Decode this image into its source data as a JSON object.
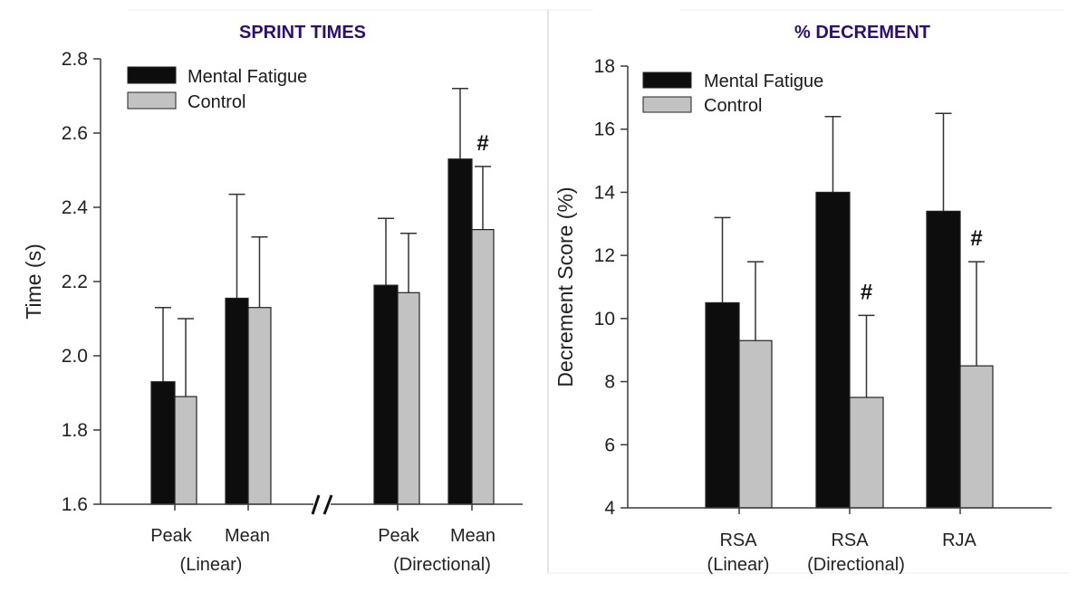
{
  "colors": {
    "title": "#2e0f6e",
    "mental_fatigue": "#0d0d0d",
    "control": "#c2c2c2",
    "axis": "#3a3a3a"
  },
  "chart_data": [
    {
      "type": "bar",
      "title": "SPRINT TIMES",
      "xlabel": "",
      "ylabel": "Time (s)",
      "ylim": [
        1.6,
        2.8
      ],
      "yticks": [
        "1.6",
        "1.8",
        "2.0",
        "2.2",
        "2.4",
        "2.6",
        "2.8"
      ],
      "ytick_values": [
        1.6,
        1.8,
        2.0,
        2.2,
        2.4,
        2.6,
        2.8
      ],
      "legend": {
        "placement": "top-left",
        "entries": [
          "Mental Fatigue",
          "Control"
        ]
      },
      "axis_break": "//",
      "categories": [
        "Peak",
        "Mean",
        "Peak",
        "Mean"
      ],
      "group_labels": [
        "(Linear)",
        "(Directional)"
      ],
      "series": [
        {
          "name": "Mental Fatigue",
          "values": [
            1.93,
            2.155,
            2.19,
            2.53
          ],
          "error_upper": [
            2.13,
            2.435,
            2.37,
            2.72
          ]
        },
        {
          "name": "Control",
          "values": [
            1.89,
            2.13,
            2.17,
            2.34
          ],
          "error_upper": [
            2.1,
            2.32,
            2.33,
            2.51
          ]
        }
      ],
      "annotations": [
        {
          "text": "#",
          "category_index": 3,
          "note": "above Control error bar"
        }
      ]
    },
    {
      "type": "bar",
      "title": "% DECREMENT",
      "xlabel": "",
      "ylabel": "Decrement Score (%)",
      "ylim": [
        4,
        18
      ],
      "yticks": [
        "4",
        "6",
        "8",
        "10",
        "12",
        "14",
        "16",
        "18"
      ],
      "ytick_values": [
        4,
        6,
        8,
        10,
        12,
        14,
        16,
        18
      ],
      "legend": {
        "placement": "top-left",
        "entries": [
          "Mental Fatigue",
          "Control"
        ]
      },
      "categories": [
        "RSA",
        "RSA",
        "RJA"
      ],
      "category_sublabels": [
        "(Linear)",
        "(Directional)",
        ""
      ],
      "series": [
        {
          "name": "Mental Fatigue",
          "values": [
            10.5,
            14.0,
            13.4
          ],
          "error_upper": [
            13.2,
            16.4,
            16.5
          ]
        },
        {
          "name": "Control",
          "values": [
            9.3,
            7.5,
            8.5
          ],
          "error_upper": [
            11.8,
            10.1,
            11.8
          ]
        }
      ],
      "annotations": [
        {
          "text": "#",
          "category_index": 1
        },
        {
          "text": "#",
          "category_index": 2
        }
      ]
    }
  ]
}
